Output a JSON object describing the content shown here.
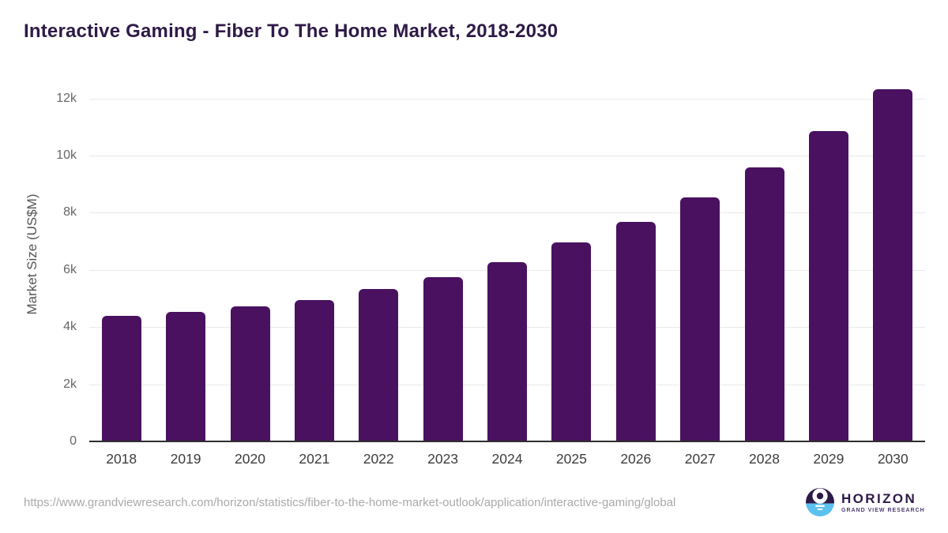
{
  "title": "Interactive Gaming - Fiber To The Home Market, 2018-2030",
  "source_url": "https://www.grandviewresearch.com/horizon/statistics/fiber-to-the-home-market-outlook/application/interactive-gaming/global",
  "logo": {
    "name": "HORIZON",
    "subtitle": "GRAND VIEW RESEARCH"
  },
  "colors": {
    "bar": "#4a1160",
    "title": "#2e1a47",
    "gridline": "#e9e9e9",
    "axis_line": "#2d2d2d",
    "y_tick_label": "#666666",
    "x_tick_label": "#3c3c3c",
    "source_url": "#a9a9a9",
    "logo_purple": "#2e1a47",
    "logo_blue": "#5bc2ef"
  },
  "chart_data": {
    "type": "bar",
    "title": "Interactive Gaming - Fiber To The Home Market, 2018-2030",
    "categories": [
      "2018",
      "2019",
      "2020",
      "2021",
      "2022",
      "2023",
      "2024",
      "2025",
      "2026",
      "2027",
      "2028",
      "2029",
      "2030"
    ],
    "values": [
      4380,
      4540,
      4730,
      4950,
      5320,
      5740,
      6270,
      6950,
      7680,
      8550,
      9600,
      10850,
      12320
    ],
    "xlabel": "",
    "ylabel": "Market Size (US$M)",
    "ylim": [
      0,
      12000
    ],
    "yticks": [
      {
        "value": 0,
        "label": "0"
      },
      {
        "value": 2000,
        "label": "2k"
      },
      {
        "value": 4000,
        "label": "4k"
      },
      {
        "value": 6000,
        "label": "6k"
      },
      {
        "value": 8000,
        "label": "8k"
      },
      {
        "value": 10000,
        "label": "10k"
      },
      {
        "value": 12000,
        "label": "12k"
      }
    ],
    "grid": true,
    "legend": false,
    "bar_color": "#4a1160"
  }
}
